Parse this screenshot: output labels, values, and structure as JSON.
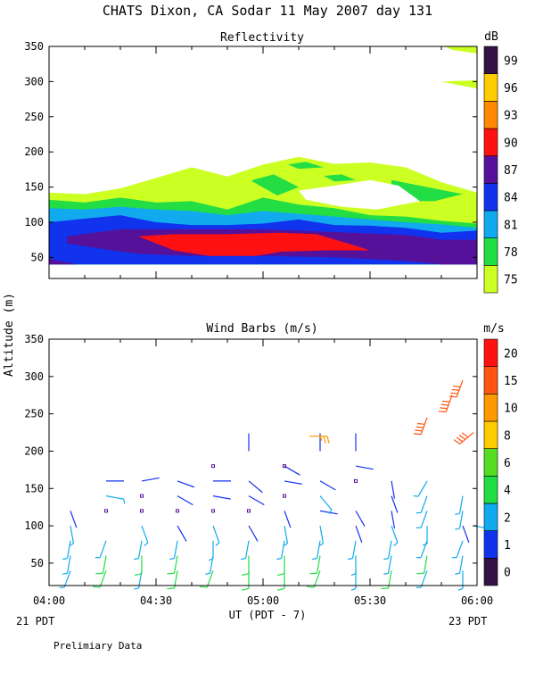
{
  "title": "CHATS Dixon, CA  Sodar  11 May 2007  day 131",
  "ylabel": "Altitude (m)",
  "xlabel": "UT  (PDT - 7)",
  "left_date": "21 PDT",
  "right_date": "23 PDT",
  "footer": "Prelimiary Data",
  "chart_data": [
    {
      "type": "heatmap",
      "title": "Reflectivity",
      "units_label": "dB",
      "x": {
        "min_minutes": 0,
        "max_minutes": 120,
        "tick_labels": [
          "04:00",
          "04:30",
          "05:00",
          "05:30",
          "06:00"
        ]
      },
      "y": {
        "range": [
          20,
          350
        ],
        "ticks": [
          50,
          100,
          150,
          200,
          250,
          300,
          350
        ]
      },
      "colorbar": {
        "levels": [
          75,
          78,
          81,
          84,
          87,
          90,
          93,
          96,
          99
        ],
        "colors": [
          "#ccff22",
          "#22dd44",
          "#11aaee",
          "#1133ee",
          "#551199",
          "#ff1111",
          "#ff8800",
          "#ffcc00",
          "#331144"
        ]
      },
      "bands": [
        {
          "level": 75,
          "points": [
            [
              0,
              142
            ],
            [
              10,
              140
            ],
            [
              20,
              148
            ],
            [
              30,
              163
            ],
            [
              40,
              178
            ],
            [
              50,
              165
            ],
            [
              60,
              182
            ],
            [
              70,
              193
            ],
            [
              80,
              183
            ],
            [
              90,
              185
            ],
            [
              100,
              178
            ],
            [
              110,
              157
            ],
            [
              120,
              142
            ],
            [
              120,
              95
            ],
            [
              0,
              95
            ]
          ]
        },
        {
          "level": 78,
          "points": [
            [
              0,
              132
            ],
            [
              10,
              128
            ],
            [
              20,
              135
            ],
            [
              30,
              128
            ],
            [
              40,
              130
            ],
            [
              50,
              118
            ],
            [
              60,
              135
            ],
            [
              70,
              125
            ],
            [
              80,
              120
            ],
            [
              90,
              110
            ],
            [
              100,
              108
            ],
            [
              110,
              102
            ],
            [
              120,
              98
            ],
            [
              120,
              40
            ],
            [
              0,
              40
            ]
          ]
        },
        {
          "level": 81,
          "points": [
            [
              0,
              120
            ],
            [
              10,
              118
            ],
            [
              20,
              122
            ],
            [
              30,
              118
            ],
            [
              40,
              116
            ],
            [
              50,
              110
            ],
            [
              60,
              116
            ],
            [
              70,
              112
            ],
            [
              80,
              108
            ],
            [
              90,
              104
            ],
            [
              100,
              100
            ],
            [
              110,
              97
            ],
            [
              120,
              92
            ],
            [
              120,
              40
            ],
            [
              0,
              40
            ]
          ]
        },
        {
          "level": 84,
          "points": [
            [
              0,
              100
            ],
            [
              10,
              105
            ],
            [
              20,
              110
            ],
            [
              30,
              100
            ],
            [
              40,
              96
            ],
            [
              50,
              96
            ],
            [
              60,
              98
            ],
            [
              70,
              104
            ],
            [
              80,
              96
            ],
            [
              90,
              95
            ],
            [
              100,
              92
            ],
            [
              110,
              85
            ],
            [
              120,
              88
            ],
            [
              120,
              40
            ],
            [
              0,
              40
            ]
          ]
        },
        {
          "level": 87,
          "points": [
            [
              5,
              80
            ],
            [
              20,
              90
            ],
            [
              40,
              90
            ],
            [
              60,
              90
            ],
            [
              80,
              86
            ],
            [
              100,
              82
            ],
            [
              110,
              75
            ],
            [
              120,
              75
            ],
            [
              120,
              40
            ],
            [
              110,
              40
            ],
            [
              100,
              45
            ],
            [
              80,
              50
            ],
            [
              60,
              52
            ],
            [
              40,
              52
            ],
            [
              25,
              55
            ],
            [
              15,
              62
            ],
            [
              5,
              70
            ]
          ]
        },
        {
          "level": 90,
          "points": [
            [
              25,
              80
            ],
            [
              35,
              83
            ],
            [
              50,
              83
            ],
            [
              65,
              85
            ],
            [
              75,
              83
            ],
            [
              85,
              68
            ],
            [
              90,
              60
            ],
            [
              78,
              60
            ],
            [
              65,
              58
            ],
            [
              58,
              52
            ],
            [
              45,
              52
            ],
            [
              35,
              60
            ]
          ]
        },
        {
          "level": 87,
          "points": [
            [
              0,
              40
            ],
            [
              8,
              40
            ],
            [
              0,
              48
            ]
          ]
        },
        {
          "level": 78,
          "points": [
            [
              57,
              160
            ],
            [
              63,
              168
            ],
            [
              70,
              150
            ],
            [
              64,
              138
            ],
            [
              57,
              158
            ]
          ]
        },
        {
          "level": 78,
          "points": [
            [
              67,
              182
            ],
            [
              72,
              186
            ],
            [
              77,
              178
            ],
            [
              70,
              176
            ]
          ]
        },
        {
          "level": 78,
          "points": [
            [
              77,
              166
            ],
            [
              82,
              168
            ],
            [
              86,
              160
            ],
            [
              80,
              158
            ]
          ]
        },
        {
          "level": 78,
          "points": [
            [
              96,
              160
            ],
            [
              104,
              152
            ],
            [
              116,
              140
            ],
            [
              108,
              130
            ],
            [
              100,
              130
            ],
            [
              96,
              150
            ]
          ]
        },
        {
          "level": 75,
          "points": [
            [
              111,
              350
            ],
            [
              120,
              350
            ],
            [
              120,
              340
            ],
            [
              113,
              345
            ]
          ]
        },
        {
          "level": 75,
          "points": [
            [
              110,
              300
            ],
            [
              120,
              302
            ],
            [
              120,
              290
            ]
          ]
        }
      ],
      "holes": [
        {
          "points": [
            [
              70,
              145
            ],
            [
              80,
              152
            ],
            [
              90,
              160
            ],
            [
              98,
              152
            ],
            [
              104,
              130
            ],
            [
              92,
              118
            ],
            [
              82,
              122
            ],
            [
              72,
              132
            ]
          ]
        }
      ]
    },
    {
      "type": "scatter",
      "title": "Wind Barbs (m/s)",
      "units_label": "m/s",
      "x": {
        "min_minutes": 0,
        "max_minutes": 120,
        "tick_labels": [
          "04:00",
          "04:30",
          "05:00",
          "05:30",
          "06:00"
        ]
      },
      "y": {
        "range": [
          20,
          350
        ],
        "ticks": [
          50,
          100,
          150,
          200,
          250,
          300,
          350
        ]
      },
      "colorbar": {
        "levels": [
          0,
          1,
          2,
          4,
          6,
          8,
          10,
          15,
          20
        ],
        "colors": [
          "#331144",
          "#1133ee",
          "#11aaee",
          "#22dd44",
          "#55dd22",
          "#ffcc00",
          "#ff9900",
          "#ff5511",
          "#ff1111"
        ]
      },
      "columns_minutes": [
        6,
        16,
        26,
        36,
        46,
        56,
        66,
        76,
        86,
        96,
        106,
        116
      ],
      "heights_m": [
        40,
        60,
        80,
        100,
        120,
        140,
        160,
        180,
        200,
        220
      ],
      "speed_m_s": [
        [
          3,
          4,
          3,
          4,
          4,
          5,
          5,
          4,
          3,
          4,
          3,
          2
        ],
        [
          3,
          4,
          4,
          4,
          3,
          4,
          4,
          4,
          3,
          3,
          4,
          2
        ],
        [
          3,
          3,
          3,
          2,
          2,
          2,
          3,
          3,
          2,
          2,
          3,
          2
        ],
        [
          2,
          0,
          2,
          1,
          2,
          1,
          2,
          2,
          1,
          2,
          2,
          1
        ],
        [
          1,
          0,
          0,
          0,
          0,
          0,
          1,
          1,
          1,
          1,
          2,
          2
        ],
        [
          0,
          2,
          0,
          1,
          1,
          1,
          0,
          2,
          0,
          1,
          2,
          2
        ],
        [
          0,
          1,
          1,
          1,
          1,
          1,
          1,
          1,
          0,
          1,
          2,
          0
        ],
        [
          0,
          0,
          0,
          0,
          0,
          0,
          1,
          0,
          1,
          0,
          0,
          0
        ],
        [
          0,
          0,
          0,
          0,
          0,
          1,
          0,
          1,
          1,
          0,
          0,
          0
        ],
        [
          0,
          0,
          0,
          0,
          0,
          0,
          0,
          0,
          0,
          0,
          0,
          0
        ]
      ],
      "direction_deg": [
        [
          200,
          200,
          190,
          190,
          200,
          180,
          180,
          200,
          180,
          190,
          200,
          180
        ],
        [
          190,
          190,
          180,
          190,
          190,
          180,
          180,
          190,
          180,
          190,
          190,
          190
        ],
        [
          190,
          200,
          190,
          190,
          180,
          190,
          190,
          190,
          190,
          190,
          200,
          200
        ],
        [
          170,
          0,
          160,
          150,
          160,
          150,
          170,
          170,
          160,
          160,
          180,
          160
        ],
        [
          160,
          100,
          90,
          80,
          90,
          70,
          160,
          100,
          150,
          170,
          200,
          190
        ],
        [
          0,
          100,
          90,
          120,
          100,
          120,
          0,
          140,
          0,
          160,
          200,
          190
        ],
        [
          0,
          90,
          80,
          110,
          90,
          130,
          100,
          120,
          0,
          170,
          210,
          0
        ],
        [
          0,
          0,
          0,
          0,
          0,
          0,
          120,
          0,
          100,
          0,
          0,
          0
        ],
        [
          0,
          0,
          0,
          0,
          0,
          0,
          0,
          0,
          0,
          0,
          0,
          0
        ],
        [
          0,
          0,
          0,
          0,
          0,
          0,
          0,
          0,
          0,
          0,
          0,
          0
        ]
      ],
      "calm_markers": [
        {
          "minutes": 16,
          "height_m": 120
        },
        {
          "minutes": 26,
          "height_m": 120
        },
        {
          "minutes": 26,
          "height_m": 140
        },
        {
          "minutes": 36,
          "height_m": 120
        },
        {
          "minutes": 46,
          "height_m": 120
        },
        {
          "minutes": 46,
          "height_m": 180
        },
        {
          "minutes": 56,
          "height_m": 120
        },
        {
          "minutes": 66,
          "height_m": 140
        },
        {
          "minutes": 66,
          "height_m": 180
        },
        {
          "minutes": 86,
          "height_m": 160
        }
      ],
      "upper_barbs": [
        {
          "minutes": 73,
          "height_m": 220,
          "speed_m_s": 10,
          "direction_deg": 90
        },
        {
          "minutes": 106,
          "height_m": 245,
          "speed_m_s": 18,
          "direction_deg": 200
        },
        {
          "minutes": 113,
          "height_m": 275,
          "speed_m_s": 18,
          "direction_deg": 200
        },
        {
          "minutes": 116,
          "height_m": 295,
          "speed_m_s": 17,
          "direction_deg": 200
        },
        {
          "minutes": 119,
          "height_m": 225,
          "speed_m_s": 16,
          "direction_deg": 230
        },
        {
          "minutes": 119,
          "height_m": 100,
          "speed_m_s": 3,
          "direction_deg": 100
        }
      ]
    }
  ]
}
